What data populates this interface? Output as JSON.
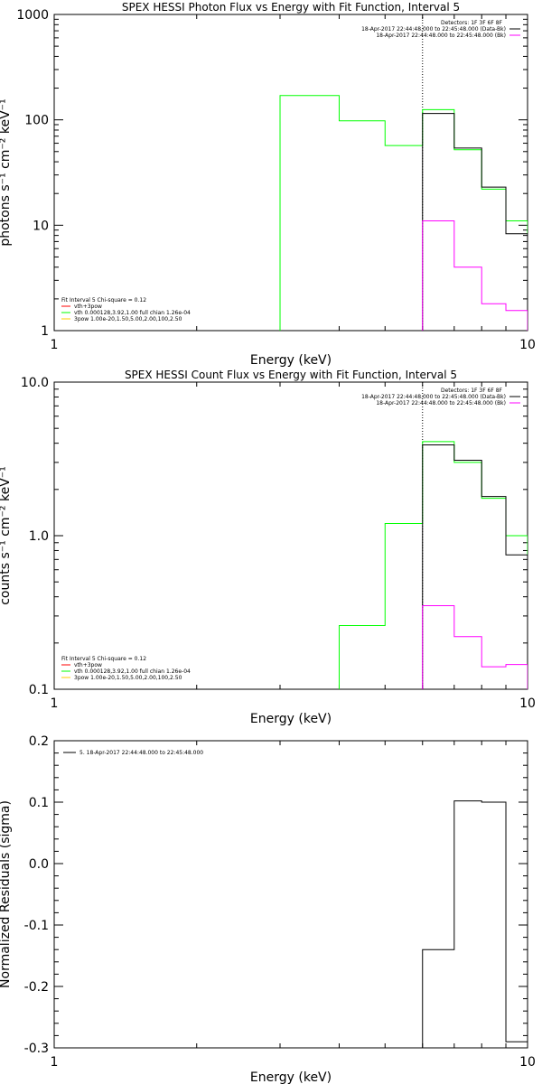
{
  "colors": {
    "background": "#ffffff",
    "axes": "#000000",
    "black": "#000000",
    "green": "#00ff00",
    "magenta": "#ff00ff",
    "red": "#ff0000",
    "yellow": "#ffcc00"
  },
  "chart_data": [
    {
      "type": "line",
      "title": "SPEX HESSI Photon Flux vs Energy with Fit Function, Interval 5",
      "xlabel": "Energy (keV)",
      "ylabel": "photons s⁻¹ cm⁻² keV⁻¹",
      "xscale": "log",
      "yscale": "log",
      "xlim": [
        1,
        10
      ],
      "ylim": [
        1,
        1000
      ],
      "xticks": [
        {
          "v": 1,
          "label": "1"
        },
        {
          "v": 10,
          "label": "10"
        }
      ],
      "yticks": [
        {
          "v": 1,
          "label": "1"
        },
        {
          "v": 10,
          "label": "10"
        },
        {
          "v": 100,
          "label": "100"
        },
        {
          "v": 1000,
          "label": "1000"
        }
      ],
      "vline": 6,
      "bin_edges": [
        3,
        4,
        5,
        6,
        7,
        8,
        9,
        10
      ],
      "series": [
        {
          "color": "#00ff00",
          "values": [
            170,
            98,
            57,
            125,
            52,
            22,
            11
          ]
        },
        {
          "color": "#000000",
          "values": [
            null,
            null,
            null,
            115,
            54,
            23,
            8.3
          ]
        },
        {
          "color": "#ff00ff",
          "values": [
            null,
            null,
            null,
            11,
            4,
            1.8,
            1.55
          ]
        }
      ],
      "legend_tr": {
        "header": "Detectors: 1F 3F 6F 8F",
        "entries": [
          {
            "text": "18-Apr-2017 22:44:48.000 to 22:45:48.000 (Data-Bk)",
            "color": "#000000"
          },
          {
            "text": "18-Apr-2017 22:44:48.000 to 22:45:48.000 (Bk)",
            "color": "#ff00ff"
          }
        ]
      },
      "legend_bl": {
        "header": "Fit Interval 5   Chi-square = 0.12",
        "entries": [
          {
            "text": "vth+3pow",
            "color": "#ff0000"
          },
          {
            "text": "vth 0.000128,3.92,1.00   full chian 1.26e-04",
            "color": "#00ff00"
          },
          {
            "text": "3pow 1.00e-20,1.50,5.00,2.00,100,2.50",
            "color": "#ffcc00"
          }
        ]
      }
    },
    {
      "type": "line",
      "title": "SPEX HESSI Count Flux vs Energy with Fit Function, Interval 5",
      "xlabel": "Energy (keV)",
      "ylabel": "counts s⁻¹ cm⁻² keV⁻¹",
      "xscale": "log",
      "yscale": "log",
      "xlim": [
        1,
        10
      ],
      "ylim": [
        0.1,
        10
      ],
      "xticks": [
        {
          "v": 1,
          "label": "1"
        },
        {
          "v": 10,
          "label": "10"
        }
      ],
      "yticks": [
        {
          "v": 0.1,
          "label": "0.1"
        },
        {
          "v": 1,
          "label": "1.0"
        },
        {
          "v": 10,
          "label": "10.0"
        }
      ],
      "vline": 6,
      "bin_edges": [
        4,
        5,
        6,
        7,
        8,
        9,
        10
      ],
      "series": [
        {
          "color": "#00ff00",
          "values": [
            0.26,
            1.2,
            4.1,
            3.0,
            1.75,
            1.0
          ]
        },
        {
          "color": "#000000",
          "values": [
            null,
            null,
            3.9,
            3.1,
            1.8,
            0.75
          ]
        },
        {
          "color": "#ff00ff",
          "values": [
            null,
            null,
            0.35,
            0.22,
            0.14,
            0.145
          ]
        }
      ],
      "legend_tr": {
        "header": "Detectors: 1F 3F 6F 8F",
        "entries": [
          {
            "text": "18-Apr-2017 22:44:48.000 to 22:45:48.000 (Data-Bk)",
            "color": "#000000"
          },
          {
            "text": "18-Apr-2017 22:44:48.000 to 22:45:48.000 (Bk)",
            "color": "#ff00ff"
          }
        ]
      },
      "legend_bl": {
        "header": "Fit Interval 5   Chi-square = 0.12",
        "entries": [
          {
            "text": "vth+3pow",
            "color": "#ff0000"
          },
          {
            "text": "vth 0.000128,3.92,1.00   full chian 1.26e-04",
            "color": "#00ff00"
          },
          {
            "text": "3pow 1.00e-20,1.50,5.00,2.00,100,2.50",
            "color": "#ffcc00"
          }
        ]
      }
    },
    {
      "type": "line",
      "title": "",
      "xlabel": "Energy (keV)",
      "ylabel": "Normalized Residuals (sigma)",
      "xscale": "log",
      "yscale": "linear",
      "xlim": [
        1,
        10
      ],
      "ylim": [
        -0.3,
        0.2
      ],
      "xticks": [
        {
          "v": 1,
          "label": "1"
        },
        {
          "v": 10,
          "label": "10"
        }
      ],
      "yticks": [
        {
          "v": -0.3,
          "label": "-0.3"
        },
        {
          "v": -0.2,
          "label": "-0.2"
        },
        {
          "v": -0.1,
          "label": "-0.1"
        },
        {
          "v": 0.0,
          "label": "0.0"
        },
        {
          "v": 0.1,
          "label": "0.1"
        },
        {
          "v": 0.2,
          "label": "0.2"
        }
      ],
      "bin_edges": [
        6,
        7,
        8,
        9,
        10
      ],
      "series": [
        {
          "color": "#000000",
          "values": [
            -0.14,
            0.102,
            0.1,
            -0.29
          ]
        }
      ],
      "legend_tl": {
        "entries": [
          {
            "text": "5. 18-Apr-2017 22:44:48.000 to 22:45:48.000",
            "color": "#000000"
          }
        ]
      }
    }
  ]
}
